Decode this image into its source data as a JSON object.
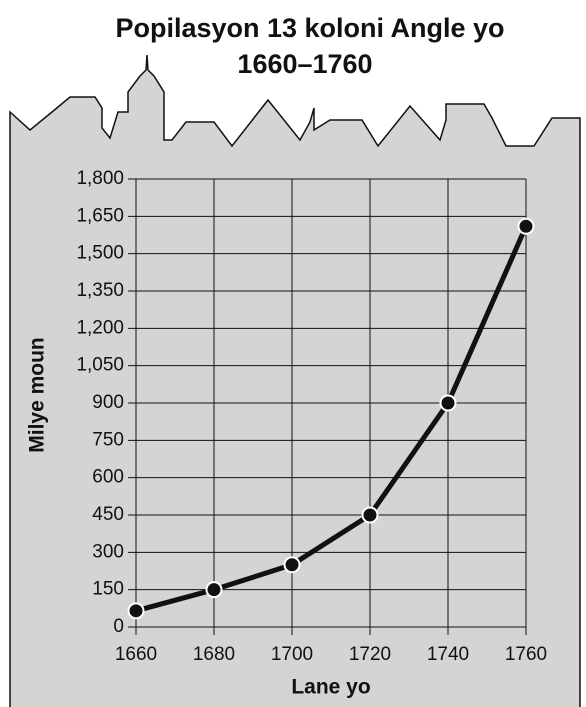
{
  "chart_data": {
    "type": "line",
    "title": "Popilasyon 13 koloni Angle yo",
    "subtitle": "1660–1760",
    "x_label": "Lane yo",
    "y_label": "Milye moun",
    "x": [
      1660,
      1680,
      1700,
      1720,
      1740,
      1760
    ],
    "values": [
      65,
      150,
      250,
      450,
      900,
      1610
    ],
    "color": "#111111",
    "xlim": [
      1660,
      1760
    ],
    "xticks": [
      1660,
      1680,
      1700,
      1720,
      1740,
      1760
    ],
    "ylim": [
      0,
      1800
    ],
    "yticks": [
      0,
      150,
      300,
      450,
      600,
      750,
      900,
      {
        "value": 1050,
        "label": "1,050"
      },
      {
        "value": 1200,
        "label": "1,200"
      },
      {
        "value": 1350,
        "label": "1,350"
      },
      {
        "value": 1500,
        "label": "1,500"
      },
      {
        "value": 1650,
        "label": "1,650"
      },
      {
        "value": 1800,
        "label": "1,800"
      }
    ],
    "grid": true
  }
}
